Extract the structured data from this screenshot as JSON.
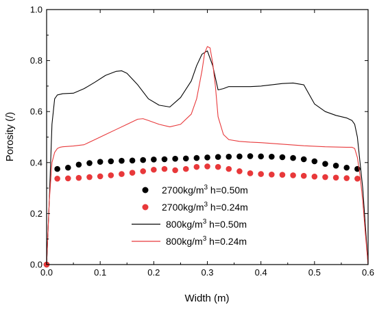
{
  "chart_data": {
    "type": "line",
    "xlabel": "Width (m)",
    "ylabel": "Porosity (/)",
    "xlim": [
      0.0,
      0.6
    ],
    "ylim": [
      0.0,
      1.0
    ],
    "xticks": [
      "0.0",
      "0.1",
      "0.2",
      "0.3",
      "0.4",
      "0.5",
      "0.6"
    ],
    "yticks": [
      "0.0",
      "0.2",
      "0.4",
      "0.6",
      "0.8",
      "1.0"
    ],
    "grid": false,
    "legend_position": "center-bottom",
    "series": [
      {
        "name": "2700kg/m3 h=0.50m",
        "legend_base": "2700kg/m",
        "legend_sup": "3",
        "legend_tail": " h=0.50m",
        "kind": "scatter",
        "color": "#000000",
        "x": [
          0.0,
          0.02,
          0.04,
          0.06,
          0.08,
          0.1,
          0.12,
          0.14,
          0.16,
          0.18,
          0.2,
          0.22,
          0.24,
          0.26,
          0.28,
          0.3,
          0.32,
          0.34,
          0.36,
          0.38,
          0.4,
          0.42,
          0.44,
          0.46,
          0.48,
          0.5,
          0.52,
          0.54,
          0.56,
          0.58
        ],
        "y": [
          0.0,
          0.375,
          0.38,
          0.392,
          0.398,
          0.403,
          0.405,
          0.407,
          0.408,
          0.41,
          0.412,
          0.413,
          0.415,
          0.416,
          0.418,
          0.42,
          0.422,
          0.423,
          0.424,
          0.425,
          0.424,
          0.423,
          0.421,
          0.418,
          0.413,
          0.405,
          0.395,
          0.388,
          0.38,
          0.375
        ]
      },
      {
        "name": "2700kg/m3 h=0.24m",
        "legend_base": "2700kg/m",
        "legend_sup": "3",
        "legend_tail": " h=0.24m",
        "kind": "scatter",
        "color": "#e8383a",
        "x": [
          0.0,
          0.02,
          0.04,
          0.06,
          0.08,
          0.1,
          0.12,
          0.14,
          0.16,
          0.18,
          0.2,
          0.22,
          0.24,
          0.26,
          0.28,
          0.3,
          0.32,
          0.34,
          0.36,
          0.38,
          0.4,
          0.42,
          0.44,
          0.46,
          0.48,
          0.5,
          0.52,
          0.54,
          0.56,
          0.58
        ],
        "y": [
          0.0,
          0.337,
          0.338,
          0.34,
          0.343,
          0.346,
          0.35,
          0.355,
          0.36,
          0.366,
          0.372,
          0.375,
          0.37,
          0.375,
          0.383,
          0.385,
          0.383,
          0.375,
          0.366,
          0.358,
          0.355,
          0.353,
          0.352,
          0.35,
          0.348,
          0.345,
          0.343,
          0.341,
          0.339,
          0.337
        ]
      },
      {
        "name": "800kg/m3  h=0.50m",
        "legend_base": "800kg/m",
        "legend_sup": "3",
        "legend_tail": "  h=0.50m",
        "kind": "line",
        "color": "#000000",
        "x": [
          0.0,
          0.005,
          0.01,
          0.015,
          0.02,
          0.03,
          0.05,
          0.07,
          0.09,
          0.11,
          0.13,
          0.14,
          0.15,
          0.17,
          0.19,
          0.21,
          0.23,
          0.25,
          0.27,
          0.28,
          0.29,
          0.3,
          0.31,
          0.32,
          0.33,
          0.34,
          0.36,
          0.38,
          0.4,
          0.42,
          0.44,
          0.46,
          0.48,
          0.5,
          0.52,
          0.54,
          0.56,
          0.57,
          0.575,
          0.58,
          0.585,
          0.59,
          0.595,
          0.6
        ],
        "y": [
          0.0,
          0.25,
          0.55,
          0.65,
          0.665,
          0.67,
          0.672,
          0.69,
          0.715,
          0.742,
          0.758,
          0.76,
          0.75,
          0.705,
          0.65,
          0.625,
          0.618,
          0.655,
          0.72,
          0.78,
          0.825,
          0.838,
          0.78,
          0.685,
          0.69,
          0.698,
          0.698,
          0.698,
          0.7,
          0.705,
          0.71,
          0.712,
          0.705,
          0.63,
          0.6,
          0.585,
          0.575,
          0.565,
          0.55,
          0.5,
          0.4,
          0.3,
          0.15,
          0.0
        ]
      },
      {
        "name": "800kg/m3  h=0.24m",
        "legend_base": "800kg/m",
        "legend_sup": "3",
        "legend_tail": "  h=0.24m",
        "kind": "line",
        "color": "#e8383a",
        "x": [
          0.0,
          0.005,
          0.01,
          0.015,
          0.02,
          0.025,
          0.03,
          0.05,
          0.07,
          0.09,
          0.11,
          0.13,
          0.15,
          0.17,
          0.18,
          0.19,
          0.21,
          0.23,
          0.25,
          0.27,
          0.28,
          0.29,
          0.295,
          0.3,
          0.305,
          0.31,
          0.315,
          0.32,
          0.33,
          0.34,
          0.36,
          0.38,
          0.4,
          0.44,
          0.48,
          0.52,
          0.56,
          0.57,
          0.575,
          0.58,
          0.585,
          0.59,
          0.595,
          0.6
        ],
        "y": [
          0.0,
          0.25,
          0.4,
          0.44,
          0.455,
          0.46,
          0.462,
          0.465,
          0.47,
          0.49,
          0.51,
          0.53,
          0.55,
          0.57,
          0.572,
          0.565,
          0.55,
          0.54,
          0.55,
          0.59,
          0.65,
          0.76,
          0.83,
          0.855,
          0.85,
          0.79,
          0.7,
          0.58,
          0.51,
          0.49,
          0.483,
          0.48,
          0.478,
          0.472,
          0.466,
          0.462,
          0.46,
          0.46,
          0.455,
          0.42,
          0.35,
          0.25,
          0.12,
          0.0
        ]
      }
    ]
  }
}
